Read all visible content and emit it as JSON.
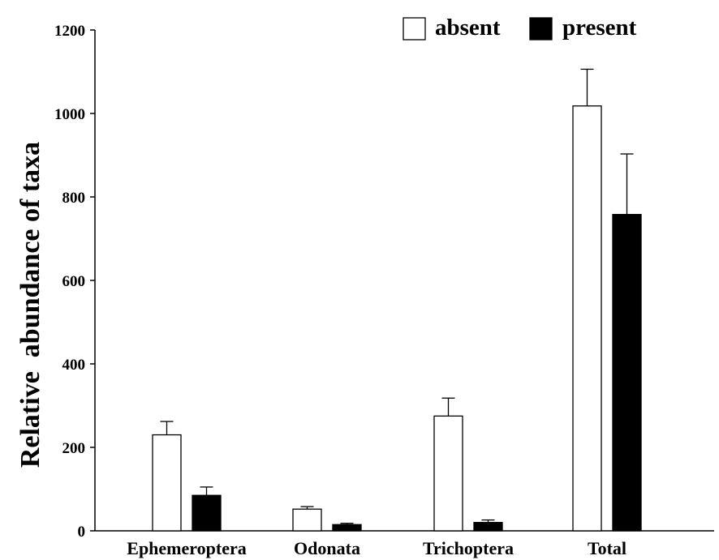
{
  "chart_data": {
    "type": "bar",
    "title": "",
    "xlabel": "",
    "ylabel": "Relative  abundance of taxa",
    "categories": [
      "Ephemeroptera",
      "Odonata",
      "Trichoptera",
      "Total"
    ],
    "series": [
      {
        "name": "absent",
        "values": [
          230,
          52,
          275,
          1018
        ],
        "errors": [
          32,
          6,
          43,
          88
        ],
        "color": "#ffffff"
      },
      {
        "name": "present",
        "values": [
          85,
          15,
          20,
          758
        ],
        "errors": [
          20,
          3,
          6,
          145
        ],
        "color": "#000000"
      }
    ],
    "yticks": [
      0,
      200,
      400,
      600,
      800,
      1000,
      1200
    ],
    "ylim": [
      0,
      1200
    ],
    "grid": false,
    "legend_position": "top-right"
  }
}
